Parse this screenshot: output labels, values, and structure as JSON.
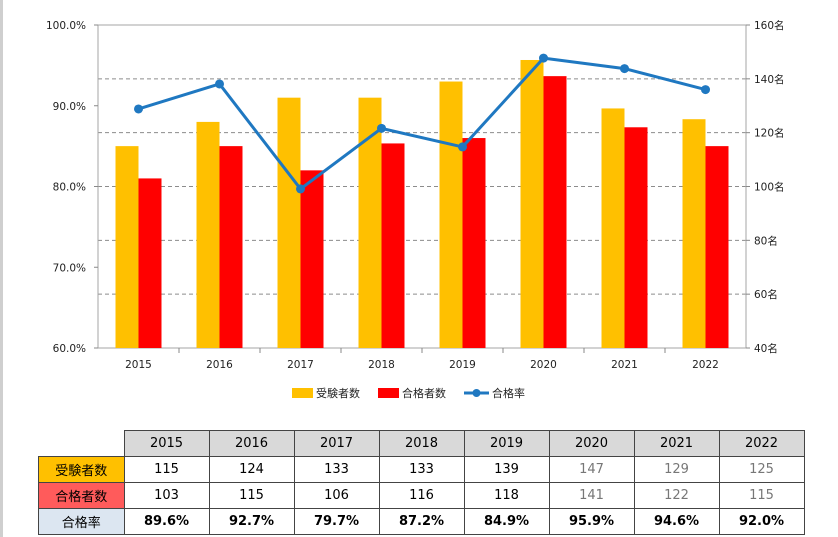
{
  "chart_data": {
    "type": "bar",
    "categories": [
      "2015",
      "2016",
      "2017",
      "2018",
      "2019",
      "2020",
      "2021",
      "2022"
    ],
    "series": [
      {
        "name": "受験者数",
        "type": "bar",
        "axis": "right",
        "color": "#ffc000",
        "values": [
          115,
          124,
          133,
          133,
          139,
          147,
          129,
          125
        ]
      },
      {
        "name": "合格者数",
        "type": "bar",
        "axis": "right",
        "color": "#ff0000",
        "values": [
          103,
          115,
          106,
          116,
          118,
          141,
          122,
          115
        ]
      },
      {
        "name": "合格率",
        "type": "line",
        "axis": "left",
        "color": "#1f78c1",
        "values": [
          89.6,
          92.7,
          79.7,
          87.2,
          84.9,
          95.9,
          94.6,
          92.0
        ]
      }
    ],
    "y_left": {
      "min": 60,
      "max": 100,
      "ticks": [
        "60.0%",
        "70.0%",
        "80.0%",
        "90.0%",
        "100.0%"
      ]
    },
    "y_right": {
      "min": 40,
      "max": 160,
      "ticks": [
        "40名",
        "60名",
        "80名",
        "100名",
        "120名",
        "140名",
        "160名"
      ]
    },
    "grid": true,
    "legend_position": "bottom"
  },
  "table": {
    "years": [
      "2015",
      "2016",
      "2017",
      "2018",
      "2019",
      "2020",
      "2021",
      "2022"
    ],
    "rows": [
      {
        "label": "受験者数",
        "values": [
          "115",
          "124",
          "133",
          "133",
          "139",
          "147",
          "129",
          "125"
        ]
      },
      {
        "label": "合格者数",
        "values": [
          "103",
          "115",
          "106",
          "116",
          "118",
          "141",
          "122",
          "115"
        ]
      },
      {
        "label": "合格率",
        "values": [
          "89.6%",
          "92.7%",
          "79.7%",
          "87.2%",
          "84.9%",
          "95.9%",
          "94.6%",
          "92.0%"
        ]
      }
    ]
  }
}
